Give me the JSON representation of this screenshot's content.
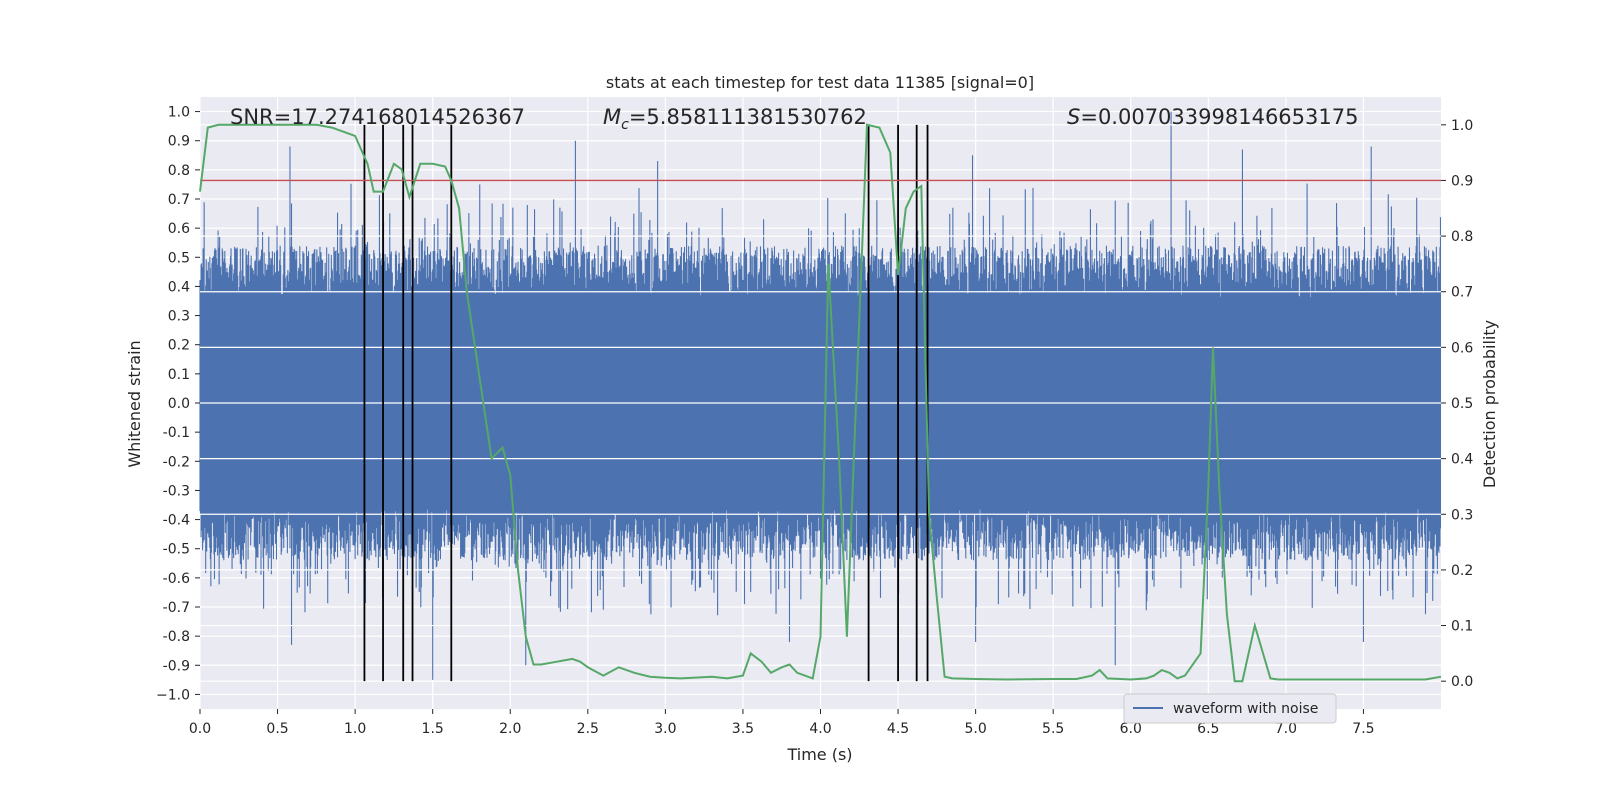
{
  "chart_data": {
    "type": "line",
    "title": "stats at each timestep for test data 11385 [signal=0]",
    "xlabel": "Time (s)",
    "ylabel_left": "Whitened strain",
    "ylabel_right": "Detection probability",
    "xlim": [
      0.0,
      8.0
    ],
    "ylim_left": [
      -1.05,
      1.05
    ],
    "ylim_right": [
      -0.05,
      1.05
    ],
    "x_ticks": [
      "0.0",
      "0.5",
      "1.0",
      "1.5",
      "2.0",
      "2.5",
      "3.0",
      "3.5",
      "4.0",
      "4.5",
      "5.0",
      "5.5",
      "6.0",
      "6.5",
      "7.0",
      "7.5"
    ],
    "y_ticks_left": [
      "1.0",
      "0.9",
      "0.8",
      "0.7",
      "0.6",
      "0.5",
      "0.4",
      "0.3",
      "0.2",
      "0.1",
      "0.0",
      "-0.1",
      "-0.2",
      "-0.3",
      "-0.4",
      "-0.5",
      "-0.6",
      "-0.7",
      "-0.8",
      "-0.9",
      "−1.0"
    ],
    "y_ticks_right": [
      "1.0",
      "0.9",
      "0.8",
      "0.7",
      "0.6",
      "0.5",
      "0.4",
      "0.3",
      "0.2",
      "0.1",
      "0.0"
    ],
    "annotations": {
      "snr": "SNR=17.274168014526367",
      "mc_symbol": "M",
      "mc_sub": "c",
      "mc_value": "=5.858111381530762",
      "s_symbol": "S",
      "s_value": "=0.007033998146653175"
    },
    "threshold": {
      "axis": "right",
      "value": 0.9,
      "color": "#c44e52"
    },
    "vertical_lines": [
      1.06,
      1.18,
      1.31,
      1.37,
      1.62,
      4.31,
      4.5,
      4.62,
      4.69
    ],
    "vertical_line_range_right": [
      0.0,
      1.0
    ],
    "series": [
      {
        "name": "waveform with noise",
        "axis": "left",
        "color": "#4c72b0",
        "kind": "noise-envelope",
        "peaks": [
          {
            "x": 0.58,
            "y": 0.88
          },
          {
            "x": 2.42,
            "y": 0.9
          },
          {
            "x": 2.95,
            "y": 0.83
          },
          {
            "x": 4.98,
            "y": 0.85
          },
          {
            "x": 6.26,
            "y": 1.0
          },
          {
            "x": 6.72,
            "y": 0.87
          },
          {
            "x": 7.55,
            "y": 0.88
          },
          {
            "x": 0.59,
            "y": -0.83
          },
          {
            "x": 1.5,
            "y": -0.95
          },
          {
            "x": 2.1,
            "y": -0.9
          },
          {
            "x": 3.8,
            "y": -0.82
          },
          {
            "x": 5.0,
            "y": -0.82
          },
          {
            "x": 5.9,
            "y": -0.9
          },
          {
            "x": 7.5,
            "y": -0.82
          }
        ]
      },
      {
        "name": "detection probability",
        "axis": "right",
        "color": "#55a868",
        "x": [
          0.0,
          0.05,
          0.12,
          0.2,
          0.4,
          0.6,
          0.75,
          0.85,
          1.0,
          1.08,
          1.12,
          1.18,
          1.25,
          1.3,
          1.35,
          1.42,
          1.5,
          1.58,
          1.62,
          1.67,
          1.72,
          1.8,
          1.88,
          1.95,
          2.0,
          2.05,
          2.1,
          2.15,
          2.2,
          2.3,
          2.4,
          2.45,
          2.5,
          2.6,
          2.7,
          2.8,
          2.9,
          3.0,
          3.1,
          3.3,
          3.4,
          3.5,
          3.55,
          3.62,
          3.68,
          3.75,
          3.8,
          3.85,
          3.95,
          4.0,
          4.05,
          4.12,
          4.17,
          4.25,
          4.3,
          4.38,
          4.45,
          4.5,
          4.55,
          4.6,
          4.65,
          4.7,
          4.75,
          4.8,
          4.85,
          5.0,
          5.2,
          5.5,
          5.65,
          5.75,
          5.8,
          5.85,
          6.0,
          6.1,
          6.15,
          6.2,
          6.25,
          6.3,
          6.35,
          6.45,
          6.5,
          6.53,
          6.57,
          6.62,
          6.67,
          6.72,
          6.8,
          6.9,
          6.95,
          7.0,
          7.5,
          7.7,
          7.9,
          8.0
        ],
        "y": [
          0.88,
          0.995,
          1.0,
          1.0,
          1.0,
          1.0,
          1.0,
          0.995,
          0.98,
          0.93,
          0.88,
          0.88,
          0.93,
          0.92,
          0.87,
          0.93,
          0.93,
          0.925,
          0.9,
          0.85,
          0.7,
          0.55,
          0.4,
          0.42,
          0.37,
          0.2,
          0.08,
          0.03,
          0.03,
          0.035,
          0.04,
          0.035,
          0.025,
          0.01,
          0.025,
          0.015,
          0.008,
          0.006,
          0.005,
          0.008,
          0.005,
          0.01,
          0.05,
          0.035,
          0.015,
          0.025,
          0.03,
          0.015,
          0.005,
          0.08,
          0.75,
          0.4,
          0.08,
          0.65,
          1.0,
          0.995,
          0.95,
          0.73,
          0.85,
          0.88,
          0.89,
          0.3,
          0.15,
          0.008,
          0.005,
          0.004,
          0.003,
          0.004,
          0.004,
          0.01,
          0.02,
          0.005,
          0.003,
          0.005,
          0.01,
          0.02,
          0.015,
          0.005,
          0.01,
          0.05,
          0.35,
          0.6,
          0.35,
          0.12,
          0.0,
          0.0,
          0.1,
          0.005,
          0.003,
          0.003,
          0.003,
          0.003,
          0.003,
          0.008
        ]
      }
    ],
    "legend": {
      "position": "lower-right",
      "entries": [
        "waveform with noise"
      ]
    },
    "grid": true
  }
}
